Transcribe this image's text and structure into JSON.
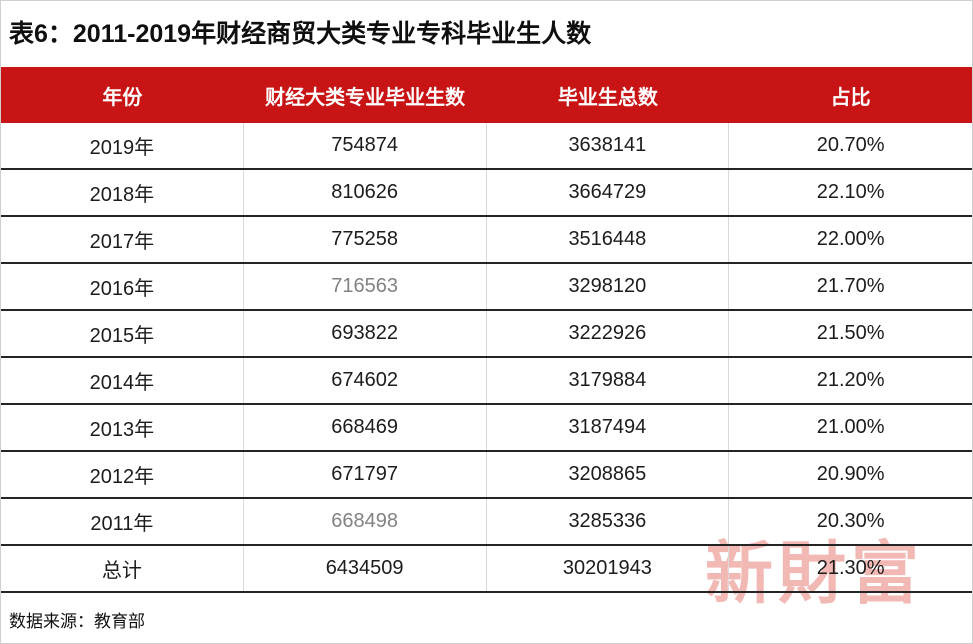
{
  "chart_data": {
    "type": "table",
    "title": "表6：2011-2019年财经商贸大类专业专科毕业生人数",
    "columns": [
      "年份",
      "财经大类专业毕业生数",
      "毕业生总数",
      "占比"
    ],
    "rows": [
      [
        "2019年",
        "754874",
        "3638141",
        "20.70%"
      ],
      [
        "2018年",
        "810626",
        "3664729",
        "22.10%"
      ],
      [
        "2017年",
        "775258",
        "3516448",
        "22.00%"
      ],
      [
        "2016年",
        "716563",
        "3298120",
        "21.70%"
      ],
      [
        "2015年",
        "693822",
        "3222926",
        "21.50%"
      ],
      [
        "2014年",
        "674602",
        "3179884",
        "21.20%"
      ],
      [
        "2013年",
        "668469",
        "3187494",
        "21.00%"
      ],
      [
        "2012年",
        "671797",
        "3208865",
        "20.90%"
      ],
      [
        "2011年",
        "668498",
        "3285336",
        "20.30%"
      ],
      [
        "总计",
        "6434509",
        "30201943",
        "21.30%"
      ]
    ],
    "source": "数据来源：教育部",
    "notes": "muted gray values: 2016 graduates 716563, 2011 graduates 668498"
  },
  "watermark": {
    "text": "新財富"
  },
  "colors": {
    "header_bg": "#c81414",
    "header_text": "#ffffff",
    "row_separator": "#242424",
    "column_separator": "#d9d9d9",
    "body_text": "#1c1c1c",
    "muted_text": "#828282",
    "watermark": "#e2574d",
    "outer_border": "#cfcfcf"
  }
}
